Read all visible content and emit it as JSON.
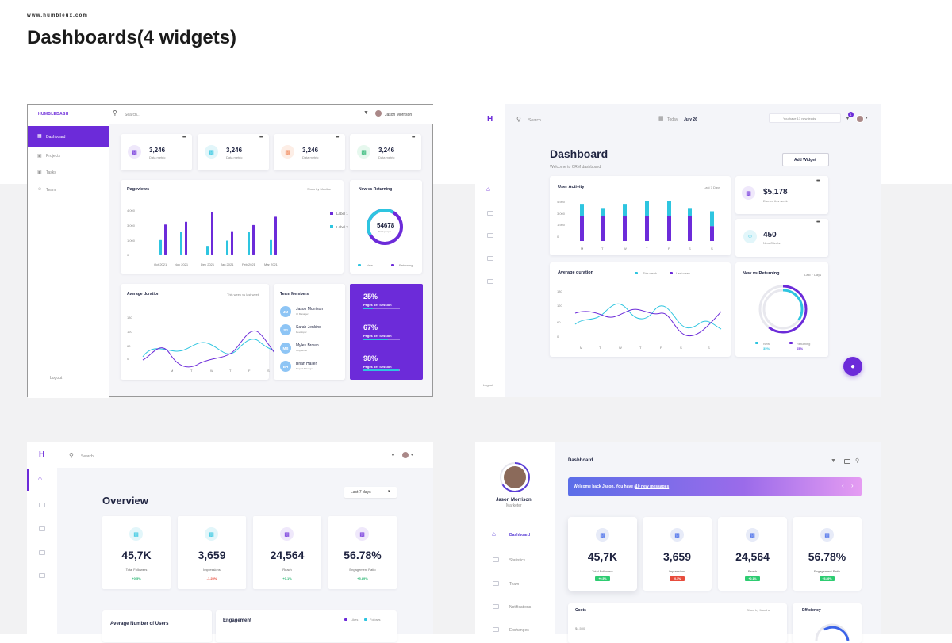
{
  "header": {
    "site": "www.humbleux.com",
    "title": "Dashboards(4 widgets)"
  },
  "p1": {
    "logo": "HUMBLEDASH",
    "search": "Search...",
    "user": "Jason Morrison",
    "nav": [
      "Dashboard",
      "Projects",
      "Tasks",
      "Team"
    ],
    "logout": "Logout",
    "metrics": [
      {
        "value": "3,246",
        "label": "Data metric"
      },
      {
        "value": "3,246",
        "label": "Data metric"
      },
      {
        "value": "3,246",
        "label": "Data metric"
      },
      {
        "value": "3,246",
        "label": "Data metric"
      }
    ],
    "pageviews": {
      "title": "Pageviews",
      "filter": "Show by Months",
      "yticks": [
        "4,000",
        "3,000",
        "1,000",
        "0"
      ],
      "labels": [
        "Oct 2021",
        "Nov 2021",
        "Dec 2021",
        "Jan 2021",
        "Feb 2021",
        "Mar 2021"
      ],
      "legend": [
        "Label 1",
        "Label 2"
      ]
    },
    "nvr": {
      "title": "New vs Returning",
      "value": "54678",
      "sub": "Total people",
      "legend": [
        "New",
        "Returning"
      ]
    },
    "avg": {
      "title": "Average duration",
      "filter": "This week vs last week",
      "yticks": [
        "180",
        "120",
        "60",
        "0"
      ],
      "xlabels": [
        "M",
        "T",
        "W",
        "T",
        "F",
        "S",
        "S"
      ]
    },
    "team": {
      "title": "Team Members",
      "members": [
        {
          "initials": "JM",
          "name": "Jason Morrison",
          "role": "UI Manager"
        },
        {
          "initials": "SJ",
          "name": "Sarah Jenkins",
          "role": "Developer"
        },
        {
          "initials": "MB",
          "name": "Myles Brown",
          "role": "Copywriter"
        },
        {
          "initials": "BH",
          "name": "Brian Hallen",
          "role": "Project Manager"
        }
      ]
    },
    "stats": [
      {
        "pct": "25%",
        "label": "Pages per Session",
        "fill": 0.25
      },
      {
        "pct": "67%",
        "label": "Pages per Session",
        "fill": 0.67
      },
      {
        "pct": "98%",
        "label": "Pages per Session",
        "fill": 0.98
      }
    ]
  },
  "p2": {
    "logo": "H",
    "search": "Search...",
    "today": "Today",
    "date": "July 26",
    "leads": "You have 13 new leads",
    "badge": "1",
    "title": "Dashboard",
    "subtitle": "Welcome to CRM dashboard",
    "add": "Add Widget",
    "logout": "Logout",
    "activity": {
      "title": "User Activity",
      "filter": "Last 7 Days",
      "yticks": [
        "4,500",
        "3,000",
        "1,500",
        "0"
      ],
      "xlabels": [
        "M",
        "T",
        "W",
        "T",
        "F",
        "S",
        "S"
      ]
    },
    "earned": {
      "value": "$5,178",
      "label": "Earned this week"
    },
    "clients": {
      "value": "450",
      "label": "New Clients"
    },
    "avg": {
      "title": "Average duration",
      "legend": [
        "This week",
        "Last week"
      ],
      "yticks": [
        "180",
        "120",
        "60",
        "0"
      ],
      "xlabels": [
        "M",
        "T",
        "W",
        "T",
        "F",
        "S",
        "S"
      ]
    },
    "nvr": {
      "title": "New vs Returning",
      "filter": "Last 7 Days",
      "legend": [
        {
          "label": "New",
          "value": "35%"
        },
        {
          "label": "Returning",
          "value": "65%"
        }
      ]
    }
  },
  "p3": {
    "logo": "H",
    "search": "Search...",
    "title": "Overview",
    "filter": "Last 7 days",
    "kpis": [
      {
        "value": "45,7K",
        "label": "Total Followers",
        "delta": "+0.5%",
        "color": "#2bb673"
      },
      {
        "value": "3,659",
        "label": "Impressions",
        "delta": "-1.25%",
        "color": "#e74c3c"
      },
      {
        "value": "24,564",
        "label": "Reach",
        "delta": "+0.1%",
        "color": "#2bb673"
      },
      {
        "value": "56.78%",
        "label": "Engagement Ratio",
        "delta": "+5.89%",
        "color": "#2bb673"
      }
    ],
    "avgusers": "Average Number of Users",
    "engagement": {
      "title": "Engagement",
      "legend": [
        "Likes",
        "Follows"
      ]
    }
  },
  "p4": {
    "name": "Jason Morrison",
    "role": "Marketer",
    "title": "Dashboard",
    "nav": [
      "Dashboard",
      "Statistics",
      "Team",
      "Notifications",
      "Exchanges"
    ],
    "banner": {
      "text": "Welcome back Jason, You have a",
      "link": "10 new messages"
    },
    "kpis": [
      {
        "value": "45,7K",
        "label": "Total Followers",
        "delta": "+0.5%",
        "color": "#2ecc71"
      },
      {
        "value": "3,659",
        "label": "Impressions",
        "delta": "-0.1%",
        "color": "#e74c3c"
      },
      {
        "value": "24,564",
        "label": "Reach",
        "delta": "+0.1%",
        "color": "#2ecc71"
      },
      {
        "value": "56.78%",
        "label": "Engagement Ratio",
        "delta": "+5.89%",
        "color": "#2ecc71"
      }
    ],
    "costs": {
      "title": "Costs",
      "filter": "Show by Months",
      "ytick": "$4,500"
    },
    "efficiency": "Efficiency"
  },
  "colors": {
    "purple": "#6c2bd9",
    "cyan": "#2ec5e0",
    "navy": "#1e2340"
  }
}
